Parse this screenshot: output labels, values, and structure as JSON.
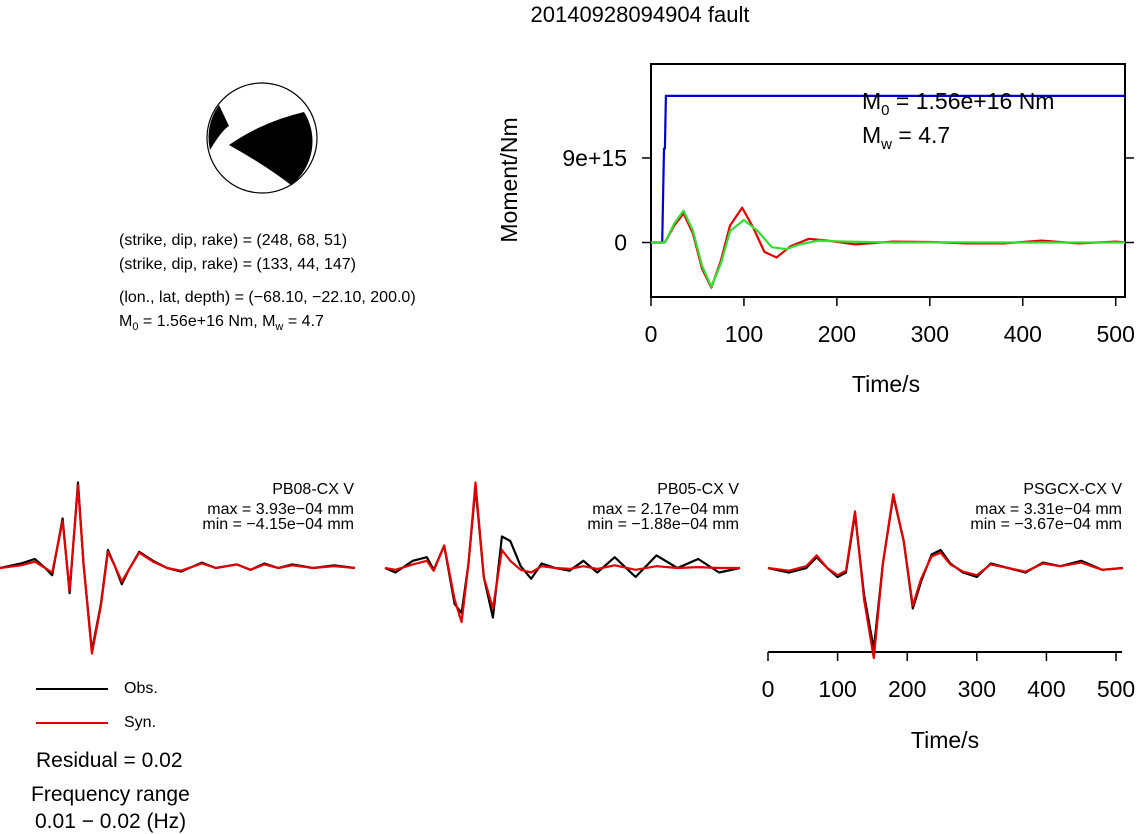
{
  "title": "20140928094904 fault",
  "source_info": {
    "line1": "(strike, dip, rake) = (248, 68, 51)",
    "line2": "(strike, dip, rake) = (133, 44, 147)",
    "line3": "(lon., lat, depth) = (−68.10, −22.10, 200.0)",
    "m0_label": "M",
    "m0_sub": "0",
    "m0_rest": " = 1.56e+16 Nm, M",
    "mw_sub": "w",
    "mw_rest": " = 4.7"
  },
  "legend": {
    "obs_label": "Obs.",
    "syn_label": "Syn.",
    "obs_color": "#000000",
    "syn_color": "#e00000"
  },
  "residual": "Residual = 0.02",
  "frequency": {
    "label": "Frequency range",
    "value": "0.01 − 0.02 (Hz)"
  },
  "chart_data": [
    {
      "type": "line",
      "xlabel": "Time/s",
      "ylabel": "Moment/Nm",
      "xlim": [
        0,
        510
      ],
      "ylim": [
        -5800000000000000.0,
        1.9e+16
      ],
      "xticks": [
        "0",
        "100",
        "200",
        "300",
        "400",
        "500"
      ],
      "yticks": [
        "0",
        "9e+15"
      ],
      "annotation": {
        "m0": "M",
        "m0_sub": "0",
        "m0_rest": " = 1.56e+16 Nm",
        "mw": "M",
        "mw_sub": "w",
        "mw_rest": " = 4.7"
      },
      "series": [
        {
          "color": "#0000cc",
          "x": [
            0,
            12,
            14,
            15,
            16,
            510
          ],
          "y": [
            0,
            0,
            1e+16,
            1e+16,
            1.56e+16,
            1.56e+16
          ]
        },
        {
          "color": "#e00000",
          "x": [
            0,
            15,
            25,
            35,
            45,
            55,
            65,
            75,
            85,
            98,
            110,
            122,
            135,
            150,
            170,
            190,
            220,
            260,
            300,
            340,
            380,
            420,
            460,
            500,
            510
          ],
          "y": [
            0,
            0,
            1800000000000000.0,
            3100000000000000.0,
            1000000000000000.0,
            -2800000000000000.0,
            -4800000000000000.0,
            -2000000000000000.0,
            1800000000000000.0,
            3700000000000000.0,
            1600000000000000.0,
            -1000000000000000.0,
            -1600000000000000.0,
            -400000000000000.0,
            400000000000000.0,
            200000000000000.0,
            -200000000000000.0,
            100000000000000.0,
            50000000000000.0,
            -100000000000000.0,
            -100000000000000.0,
            200000000000000.0,
            -100000000000000.0,
            100000000000000.0,
            0
          ]
        },
        {
          "color": "#33dd33",
          "x": [
            0,
            15,
            25,
            35,
            45,
            55,
            65,
            75,
            85,
            100,
            115,
            130,
            145,
            160,
            180,
            210,
            260,
            320,
            400,
            510
          ],
          "y": [
            0,
            0,
            2000000000000000.0,
            3400000000000000.0,
            1300000000000000.0,
            -2500000000000000.0,
            -4700000000000000.0,
            -2300000000000000.0,
            1200000000000000.0,
            2400000000000000.0,
            1200000000000000.0,
            -500000000000000.0,
            -700000000000000.0,
            -200000000000000.0,
            200000000000000.0,
            100000000000000.0,
            0.0,
            20000000000000.0,
            0,
            0
          ]
        }
      ]
    },
    {
      "type": "line",
      "station": "PB08-CX V",
      "max_label": "max = 3.93e−04 mm",
      "min_label": "min = −4.15e−04 mm",
      "xlim": [
        0,
        510
      ],
      "ylim": [
        -1,
        1
      ],
      "series": [
        {
          "name": "Obs.",
          "color": "#000000",
          "x": [
            0,
            30,
            50,
            65,
            75,
            90,
            100,
            112,
            120,
            132,
            145,
            155,
            165,
            175,
            185,
            200,
            220,
            240,
            260,
            290,
            310,
            340,
            360,
            380,
            400,
            420,
            450,
            480,
            510
          ],
          "y": [
            0,
            0.05,
            0.1,
            0.0,
            -0.08,
            0.55,
            -0.28,
            0.95,
            0.05,
            -0.92,
            -0.4,
            0.2,
            0.02,
            -0.18,
            -0.02,
            0.18,
            0.08,
            0.0,
            -0.04,
            0.06,
            0.0,
            0.04,
            -0.02,
            0.05,
            0.0,
            0.04,
            0.0,
            0.03,
            0.0
          ]
        },
        {
          "name": "Syn.",
          "color": "#e00000",
          "x": [
            0,
            30,
            50,
            65,
            75,
            90,
            100,
            112,
            120,
            132,
            145,
            155,
            165,
            175,
            185,
            200,
            220,
            240,
            260,
            290,
            310,
            340,
            360,
            380,
            400,
            420,
            450,
            480,
            510
          ],
          "y": [
            0,
            0.03,
            0.07,
            0.0,
            -0.05,
            0.52,
            -0.25,
            0.92,
            0.05,
            -0.95,
            -0.42,
            0.18,
            0.02,
            -0.15,
            -0.02,
            0.17,
            0.07,
            0.0,
            -0.03,
            0.05,
            0.0,
            0.04,
            -0.02,
            0.04,
            0.0,
            0.03,
            0.0,
            0.02,
            0.0
          ]
        }
      ]
    },
    {
      "type": "line",
      "station": "PB05-CX V",
      "max_label": "max = 2.17e−04 mm",
      "min_label": "min = −1.88e−04 mm",
      "xlim": [
        0,
        510
      ],
      "ylim": [
        -1,
        1
      ],
      "series": [
        {
          "name": "Obs.",
          "color": "#000000",
          "x": [
            0,
            15,
            40,
            60,
            70,
            85,
            100,
            110,
            120,
            130,
            142,
            155,
            168,
            180,
            195,
            210,
            225,
            245,
            265,
            285,
            305,
            330,
            360,
            390,
            420,
            450,
            480,
            510
          ],
          "y": [
            0,
            -0.05,
            0.08,
            0.12,
            -0.02,
            0.25,
            -0.4,
            -0.5,
            0.05,
            0.9,
            -0.1,
            -0.55,
            0.35,
            0.3,
            0.02,
            -0.12,
            0.05,
            0.0,
            -0.03,
            0.08,
            -0.05,
            0.12,
            -0.1,
            0.14,
            0.0,
            0.1,
            -0.05,
            0.0
          ]
        },
        {
          "name": "Syn.",
          "color": "#e00000",
          "x": [
            0,
            15,
            40,
            60,
            70,
            85,
            100,
            110,
            120,
            130,
            142,
            155,
            168,
            180,
            195,
            210,
            225,
            245,
            265,
            285,
            305,
            330,
            360,
            390,
            420,
            450,
            480,
            510
          ],
          "y": [
            0,
            -0.02,
            0.04,
            0.08,
            -0.03,
            0.25,
            -0.35,
            -0.6,
            0.05,
            0.95,
            -0.1,
            -0.45,
            0.2,
            0.08,
            -0.02,
            -0.05,
            0.02,
            0.0,
            -0.01,
            0.02,
            -0.01,
            0.03,
            -0.02,
            0.02,
            0.0,
            0.01,
            0.0,
            0.0
          ]
        }
      ]
    },
    {
      "type": "line",
      "station": "PSGCX-CX V",
      "max_label": "max = 3.31e−04 mm",
      "min_label": "min = −3.67e−04 mm",
      "xlabel": "Time/s",
      "xlim": [
        0,
        510
      ],
      "ylim": [
        -1,
        1
      ],
      "xticks": [
        "0",
        "100",
        "200",
        "300",
        "400",
        "500"
      ],
      "series": [
        {
          "name": "Obs.",
          "color": "#000000",
          "x": [
            0,
            30,
            55,
            70,
            85,
            100,
            112,
            125,
            138,
            152,
            165,
            180,
            195,
            208,
            220,
            235,
            248,
            262,
            280,
            300,
            320,
            345,
            370,
            395,
            420,
            450,
            480,
            510
          ],
          "y": [
            0,
            -0.05,
            0.0,
            0.12,
            0.0,
            -0.1,
            -0.05,
            0.6,
            -0.3,
            -0.9,
            0.05,
            0.8,
            0.3,
            -0.45,
            -0.15,
            0.15,
            0.2,
            0.05,
            -0.05,
            -0.1,
            0.05,
            0.0,
            -0.05,
            0.06,
            0.02,
            0.08,
            -0.02,
            0.0
          ]
        },
        {
          "name": "Syn.",
          "color": "#e00000",
          "x": [
            0,
            30,
            55,
            70,
            85,
            100,
            112,
            125,
            138,
            152,
            165,
            180,
            195,
            208,
            220,
            235,
            248,
            262,
            280,
            300,
            320,
            345,
            370,
            395,
            420,
            450,
            480,
            510
          ],
          "y": [
            0,
            -0.03,
            0.02,
            0.14,
            0.0,
            -0.08,
            -0.03,
            0.63,
            -0.35,
            -1.0,
            0.05,
            0.82,
            0.3,
            -0.42,
            -0.12,
            0.13,
            0.17,
            0.04,
            -0.04,
            -0.08,
            0.04,
            0.0,
            -0.04,
            0.05,
            0.02,
            0.06,
            -0.02,
            0.0
          ]
        }
      ]
    }
  ]
}
